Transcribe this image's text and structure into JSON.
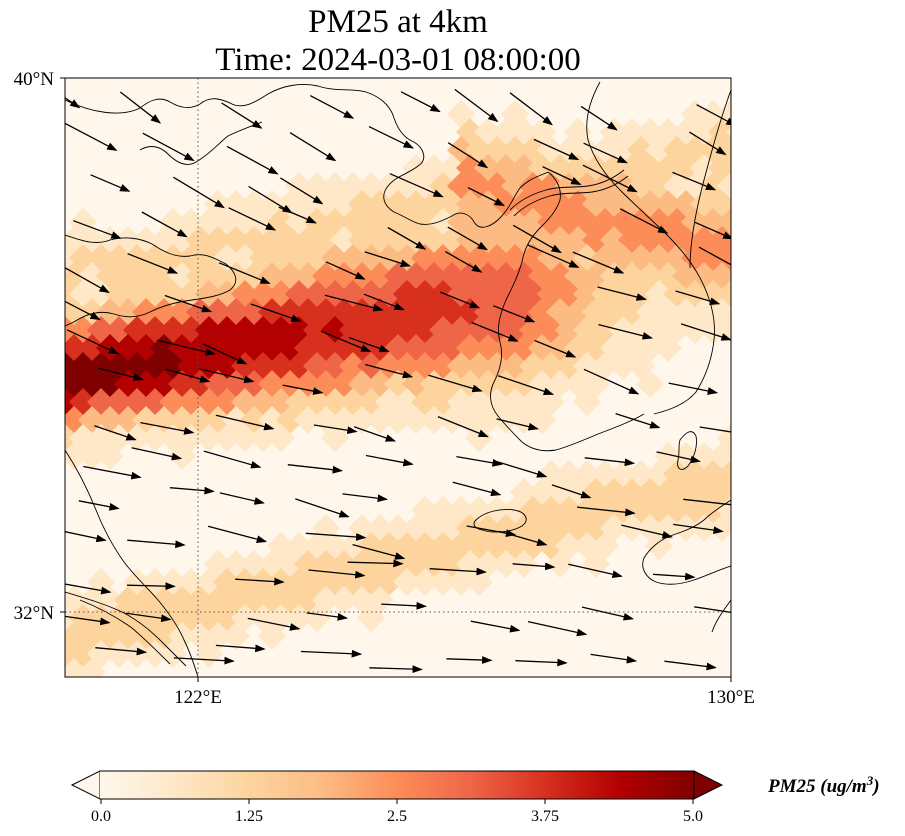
{
  "title": {
    "line1": "PM25 at 4km",
    "line2": "Time: 2024-03-01 08:00:00"
  },
  "map": {
    "lat_range": [
      31.0,
      40.0
    ],
    "lon_range": [
      120.0,
      130.0
    ],
    "lat_ticks": [
      "40°N",
      "32°N"
    ],
    "lon_ticks": [
      "122°E",
      "130°E"
    ],
    "gridlines": {
      "lat": 32,
      "lon": 122,
      "style": "dotted"
    },
    "field": "PM25",
    "colormap": "OrRd",
    "colors": [
      "#fff7ec",
      "#fee8c8",
      "#fdd49e",
      "#fdbb84",
      "#fc8d59",
      "#ef6548",
      "#d7301f",
      "#b30000",
      "#7f0000"
    ],
    "plume": "high PM25 band from Shandong peninsula / Yellow Sea toward Korean peninsula"
  },
  "colorbar": {
    "min": 0.0,
    "max": 5.0,
    "ticks": [
      "0.0",
      "1.25",
      "2.5",
      "3.75",
      "5.0"
    ],
    "label": "PM25 (ug/m",
    "label_sup": "3",
    "label_close": ")",
    "extend": "both"
  }
}
